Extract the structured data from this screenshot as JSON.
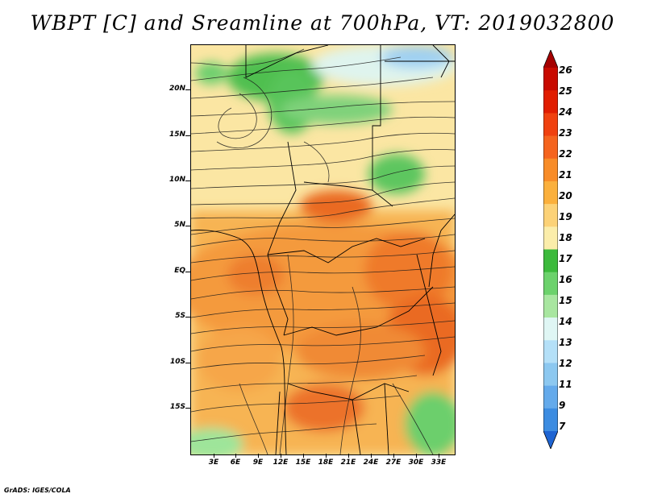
{
  "title": "WBPT [C] and Sreamline at 700hPa, VT: 2019032800",
  "credit": "GrADS: IGES/COLA",
  "map": {
    "lat_labels": [
      "20N",
      "15N",
      "10N",
      "5N",
      "EQ",
      "5S",
      "10S",
      "15S"
    ],
    "lon_labels": [
      "3E",
      "6E",
      "9E",
      "12E",
      "15E",
      "18E",
      "21E",
      "24E",
      "27E",
      "30E",
      "33E"
    ]
  },
  "colorbar": {
    "labels": [
      "26",
      "25",
      "24",
      "23",
      "22",
      "21",
      "20",
      "19",
      "18",
      "17",
      "16",
      "15",
      "14",
      "13",
      "12",
      "11",
      "9",
      "7"
    ],
    "colors": [
      "#a50000",
      "#c80a00",
      "#e11d00",
      "#f0410f",
      "#f5641e",
      "#f88c28",
      "#fbb03c",
      "#fcd277",
      "#fbedaa",
      "#3cba3c",
      "#6cd26c",
      "#a8e6a0",
      "#dff6f4",
      "#b4e0f8",
      "#8cc8f0",
      "#64aaeb",
      "#3c8ce1",
      "#1e64d2"
    ]
  }
}
